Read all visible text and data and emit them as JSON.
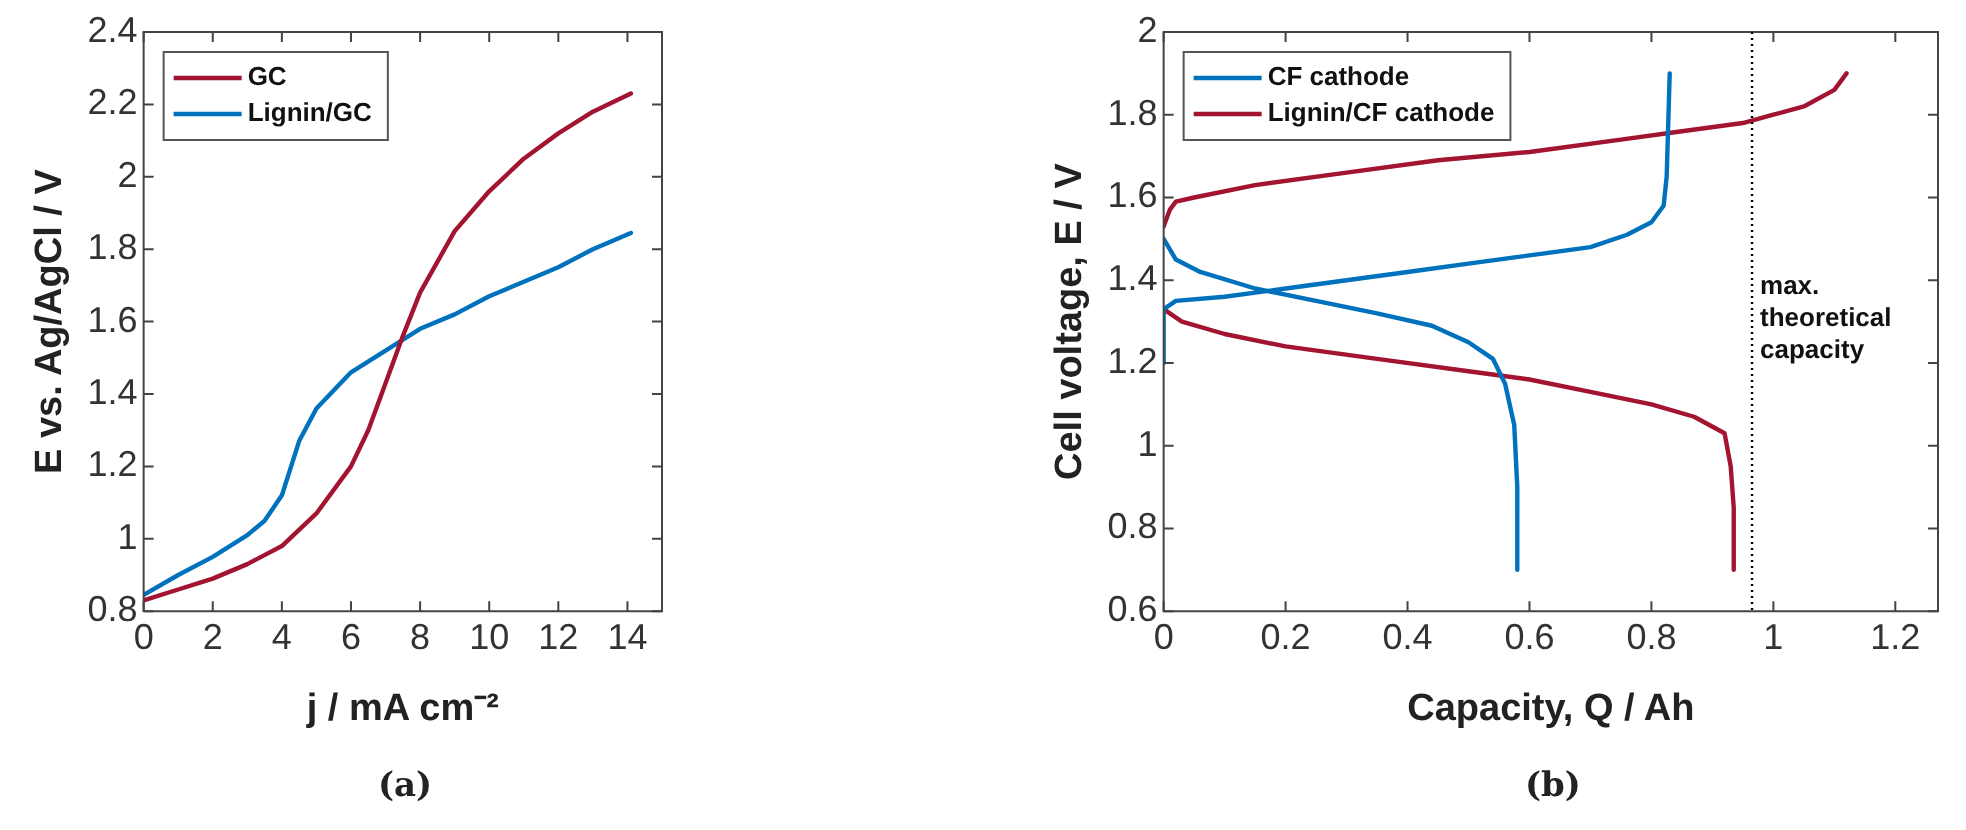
{
  "chart_data": [
    {
      "type": "line",
      "xlabel": "j / mA cm⁻²",
      "ylabel": "E vs. Ag/AgCl / V",
      "annotations": [
        "(a)"
      ],
      "xlim": [
        0,
        15
      ],
      "xticks": [
        0,
        2,
        4,
        6,
        8,
        10,
        12,
        14
      ],
      "ylim": [
        0.8,
        2.4
      ],
      "yticks": [
        0.8,
        1,
        1.2,
        1.4,
        1.6,
        1.8,
        2,
        2.2,
        2.4
      ],
      "legend": "top left",
      "marker": "none",
      "line_style": "solid",
      "series": [
        {
          "name": "GC",
          "color": "#a2142f",
          "x": [
            0,
            1,
            2,
            3,
            4,
            5,
            6,
            6.5,
            7,
            7.5,
            8,
            9,
            10,
            11,
            12,
            13,
            14.1
          ],
          "values": [
            0.83,
            0.86,
            0.89,
            0.93,
            0.98,
            1.07,
            1.2,
            1.3,
            1.43,
            1.56,
            1.68,
            1.85,
            1.96,
            2.05,
            2.12,
            2.18,
            2.23
          ]
        },
        {
          "name": "Lignin/GC",
          "color": "#0072bd",
          "x": [
            0,
            1,
            2,
            3,
            3.5,
            4,
            4.5,
            5,
            6,
            7,
            8,
            9,
            10,
            11,
            12,
            13,
            14.1
          ],
          "values": [
            0.845,
            0.9,
            0.95,
            1.01,
            1.05,
            1.12,
            1.27,
            1.36,
            1.46,
            1.52,
            1.58,
            1.62,
            1.67,
            1.71,
            1.75,
            1.8,
            1.845
          ]
        }
      ]
    },
    {
      "type": "line",
      "xlabel": "Capacity, Q / Ah",
      "ylabel": "Cell voltage, E / V",
      "annotations": [
        "(b)"
      ],
      "xlim": [
        0,
        1.27
      ],
      "xticks": [
        0,
        0.2,
        0.4,
        0.6,
        0.8,
        1,
        1.2
      ],
      "ylim": [
        0.6,
        2
      ],
      "yticks": [
        0.6,
        0.8,
        1,
        1.2,
        1.4,
        1.6,
        1.8,
        2
      ],
      "legend": "top left",
      "marker": "none",
      "line_style": "solid",
      "ref_lines": [
        {
          "axis": "x",
          "value": 0.965,
          "label": "max. theoretical capacity",
          "color": "#000000",
          "line_style": "dotted"
        }
      ],
      "series": [
        {
          "name": "CF cathode",
          "color": "#0072bd",
          "x": [
            0,
            0,
            0.02,
            0.1,
            0.2,
            0.3,
            0.4,
            0.5,
            0.6,
            0.7,
            0.76,
            0.8,
            0.82,
            0.825,
            0.83,
            null,
            0,
            0.02,
            0.06,
            0.15,
            0.25,
            0.35,
            0.44,
            0.5,
            0.54,
            0.56,
            0.575,
            0.58,
            0.58
          ],
          "values": [
            1.2,
            1.33,
            1.35,
            1.36,
            1.38,
            1.4,
            1.42,
            1.44,
            1.46,
            1.48,
            1.51,
            1.54,
            1.58,
            1.65,
            1.9,
            null,
            1.5,
            1.45,
            1.42,
            1.38,
            1.35,
            1.32,
            1.29,
            1.25,
            1.21,
            1.15,
            1.05,
            0.9,
            0.7
          ]
        },
        {
          "name": "Lignin/CF cathode",
          "color": "#a2142f",
          "x": [
            0,
            0.01,
            0.02,
            0.05,
            0.15,
            0.3,
            0.45,
            0.6,
            0.75,
            0.85,
            0.95,
            1,
            1.05,
            1.1,
            1.12,
            null,
            0,
            0.03,
            0.1,
            0.2,
            0.35,
            0.5,
            0.6,
            0.7,
            0.8,
            0.87,
            0.92,
            0.93,
            0.935,
            0.935
          ],
          "values": [
            1.53,
            1.57,
            1.59,
            1.6,
            1.63,
            1.66,
            1.69,
            1.71,
            1.74,
            1.76,
            1.78,
            1.8,
            1.82,
            1.86,
            1.9,
            null,
            1.33,
            1.3,
            1.27,
            1.24,
            1.21,
            1.18,
            1.16,
            1.13,
            1.1,
            1.07,
            1.03,
            0.95,
            0.85,
            0.7
          ]
        }
      ]
    }
  ]
}
